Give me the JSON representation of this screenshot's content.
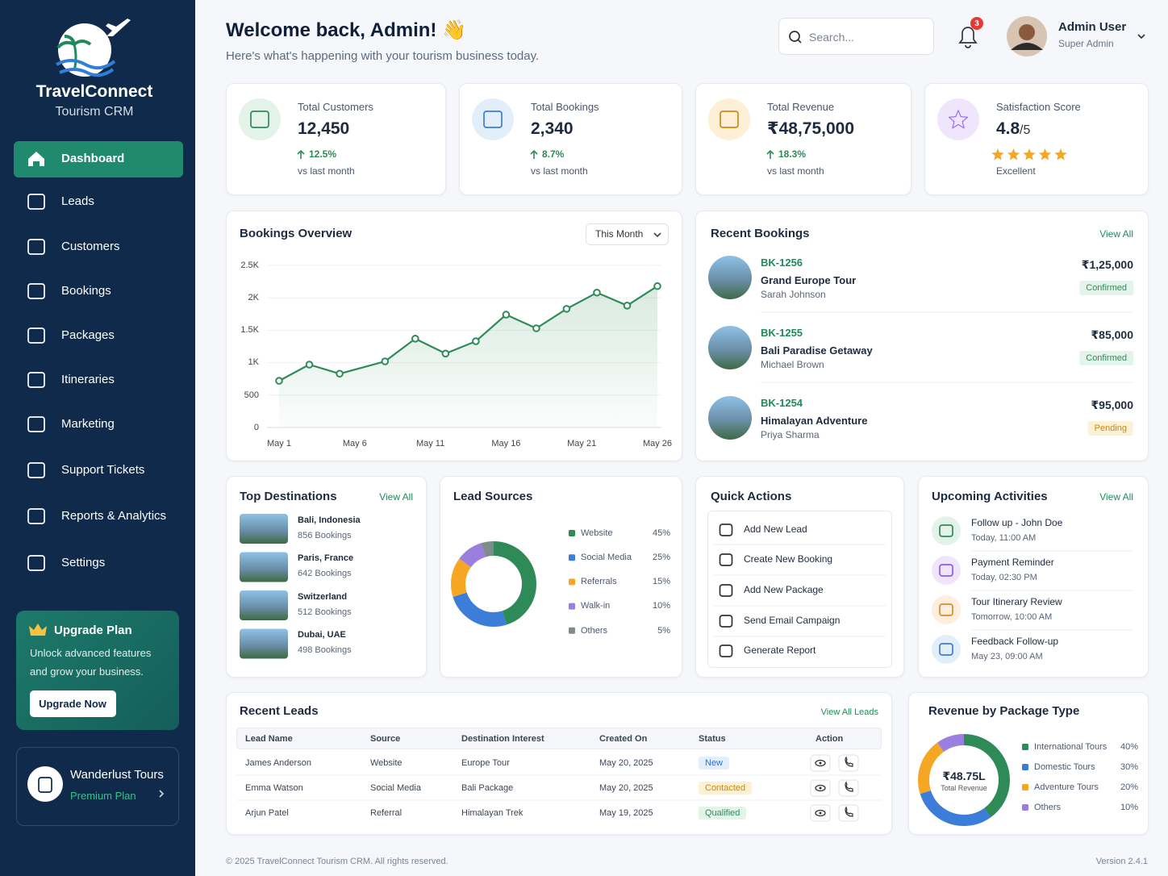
{
  "sidebar": {
    "brand": "TravelConnect",
    "tagline": "Tourism CRM",
    "nav": [
      "Dashboard",
      "Leads",
      "Customers",
      "Bookings",
      "Packages",
      "Itineraries",
      "Marketing",
      "Support Tickets",
      "Reports & Analytics",
      "Settings"
    ],
    "upgrade": {
      "title": "Upgrade Plan",
      "text": "Unlock advanced features and grow your business.",
      "button": "Upgrade Now"
    },
    "account": {
      "name": "Wanderlust Tours",
      "plan": "Premium Plan"
    }
  },
  "header": {
    "title": "Welcome back, Admin! 👋",
    "subtitle": "Here's what's happening with your tourism business today.",
    "search_placeholder": "Search...",
    "notifications": "3",
    "user": {
      "name": "Admin User",
      "role": "Super Admin"
    }
  },
  "stats": [
    {
      "label": "Total Customers",
      "value": "12,450",
      "change": "12.5%",
      "note": "vs last month"
    },
    {
      "label": "Total Bookings",
      "value": "2,340",
      "change": "8.7%",
      "note": "vs last month"
    },
    {
      "label": "Total Revenue",
      "value": "₹48,75,000",
      "change": "18.3%",
      "note": "vs last month"
    },
    {
      "label": "Satisfaction Score",
      "value": "4.8",
      "suffix": "/5",
      "note": "Excellent"
    }
  ],
  "recent_bookings": {
    "title": "Recent Bookings",
    "link": "View All",
    "items": [
      {
        "id": "BK-1256",
        "name": "Grand Europe Tour",
        "customer": "Sarah Johnson",
        "amount": "₹1,25,000",
        "status": "Confirmed"
      },
      {
        "id": "BK-1255",
        "name": "Bali Paradise Getaway",
        "customer": "Michael Brown",
        "amount": "₹85,000",
        "status": "Confirmed"
      },
      {
        "id": "BK-1254",
        "name": "Himalayan Adventure",
        "customer": "Priya Sharma",
        "amount": "₹95,000",
        "status": "Pending"
      }
    ]
  },
  "top_destinations": {
    "title": "Top Destinations",
    "link": "View All",
    "items": [
      {
        "name": "Bali, Indonesia",
        "bookings": "856 Bookings"
      },
      {
        "name": "Paris, France",
        "bookings": "642 Bookings"
      },
      {
        "name": "Switzerland",
        "bookings": "512 Bookings"
      },
      {
        "name": "Dubai, UAE",
        "bookings": "498 Bookings"
      }
    ]
  },
  "quick_actions": {
    "title": "Quick Actions",
    "items": [
      "Add New Lead",
      "Create New Booking",
      "Add New Package",
      "Send Email Campaign",
      "Generate Report"
    ]
  },
  "upcoming_activities": {
    "title": "Upcoming Activities",
    "link": "View All",
    "items": [
      {
        "title": "Follow up - John Doe",
        "time": "Today, 11:00 AM"
      },
      {
        "title": "Payment Reminder",
        "time": "Today, 02:30 PM"
      },
      {
        "title": "Tour Itinerary Review",
        "time": "Tomorrow, 10:00 AM"
      },
      {
        "title": "Feedback Follow-up",
        "time": "May 23, 09:00 AM"
      }
    ]
  },
  "recent_leads": {
    "title": "Recent Leads",
    "link": "View All Leads",
    "columns": [
      "Lead Name",
      "Source",
      "Destination Interest",
      "Created On",
      "Status",
      "Action"
    ],
    "rows": [
      [
        "James Anderson",
        "Website",
        "Europe Tour",
        "May 20, 2025",
        "New"
      ],
      [
        "Emma Watson",
        "Social Media",
        "Bali Package",
        "May 20, 2025",
        "Contacted"
      ],
      [
        "Arjun Patel",
        "Referral",
        "Himalayan Trek",
        "May 19, 2025",
        "Qualified"
      ]
    ]
  },
  "chart_data": [
    {
      "type": "line",
      "title": "Bookings Overview",
      "filter": "This Month",
      "x": [
        1,
        3,
        5,
        8,
        10,
        12,
        14,
        16,
        18,
        20,
        22,
        24,
        26
      ],
      "values": [
        720,
        970,
        830,
        1020,
        1370,
        1140,
        1330,
        1740,
        1530,
        1830,
        2080,
        1880,
        2180
      ],
      "color": "#2e8b57",
      "xlim": [
        1,
        26
      ],
      "xticks": [
        {
          "value": 1,
          "label": "May 1"
        },
        {
          "value": 6,
          "label": "May 6"
        },
        {
          "value": 11,
          "label": "May 11"
        },
        {
          "value": 16,
          "label": "May 16"
        },
        {
          "value": 21,
          "label": "May 21"
        },
        {
          "value": 26,
          "label": "May 26"
        }
      ],
      "ylim": [
        0,
        2500
      ],
      "yticks": [
        0,
        500,
        {
          "value": 1000,
          "label": "1K"
        },
        {
          "value": 1500,
          "label": "1.5K"
        },
        {
          "value": 2000,
          "label": "2K"
        },
        {
          "value": 2500,
          "label": "2.5K"
        }
      ],
      "grid": true
    },
    {
      "type": "donut",
      "title": "Lead Sources",
      "categories": [
        "Website",
        "Social Media",
        "Referrals",
        "Walk-in",
        "Others"
      ],
      "values": [
        45,
        25,
        15,
        10,
        5
      ],
      "value_labels": [
        "45%",
        "25%",
        "15%",
        "10%",
        "5%"
      ],
      "colors": [
        "#2e8b57",
        "#3b7dd8",
        "#f5a623",
        "#9b7fe0",
        "#7f8c8d"
      ]
    },
    {
      "type": "donut",
      "title": "Revenue by Package Type",
      "center_label": "₹48.75L",
      "center_sublabel": "Total Revenue",
      "categories": [
        "International Tours",
        "Domestic Tours",
        "Adventure Tours",
        "Others"
      ],
      "values": [
        40,
        30,
        20,
        10
      ],
      "value_labels": [
        "40%",
        "30%",
        "20%",
        "10%"
      ],
      "colors": [
        "#2e8b57",
        "#3b7dd8",
        "#f5a623",
        "#9b7fe0"
      ]
    }
  ],
  "footer": {
    "copyright": "© 2025 TravelConnect Tourism CRM. All rights reserved.",
    "version": "Version 2.4.1"
  }
}
